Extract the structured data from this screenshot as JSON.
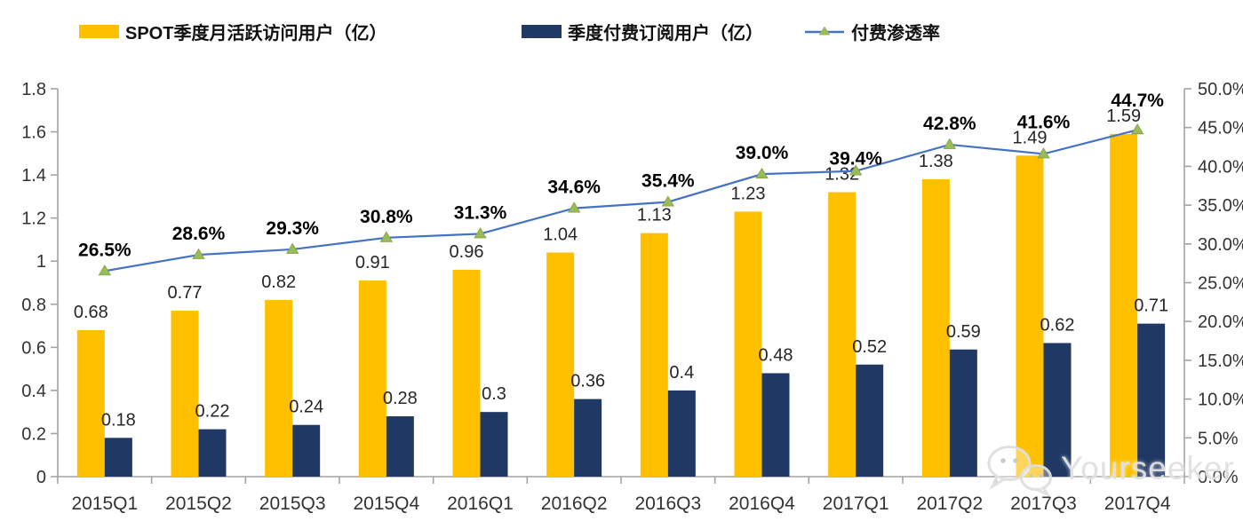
{
  "page": {
    "background": "#ffffff"
  },
  "legend": {
    "items": [
      {
        "label": "SPOT季度月活跃访问用户（亿）",
        "swatch": "bar",
        "color": "#FFC000"
      },
      {
        "label": "季度付费订阅用户（亿）",
        "swatch": "bar",
        "color": "#1F3864"
      },
      {
        "label": "付费渗透率",
        "swatch": "line-marker",
        "color": "#4472C4",
        "marker_color": "#9BBB59"
      }
    ]
  },
  "watermark": {
    "text": "Yourseeker",
    "icon": "wechat-icon",
    "color": "#DCDCDC"
  },
  "chart_data": {
    "type": "combo",
    "title": "",
    "categories": [
      "2015Q1",
      "2015Q2",
      "2015Q3",
      "2015Q4",
      "2016Q1",
      "2016Q2",
      "2016Q3",
      "2016Q4",
      "2017Q1",
      "2017Q2",
      "2017Q3",
      "2017Q4"
    ],
    "series": [
      {
        "name": "SPOT季度月活跃访问用户（亿）",
        "type": "bar",
        "axis": "left",
        "color": "#FFC000",
        "values": [
          0.68,
          0.77,
          0.82,
          0.91,
          0.96,
          1.04,
          1.13,
          1.23,
          1.32,
          1.38,
          1.49,
          1.59
        ],
        "labels": [
          "0.68",
          "0.77",
          "0.82",
          "0.91",
          "0.96",
          "1.04",
          "1.13",
          "1.23",
          "1.32",
          "1.38",
          "1.49",
          "1.59"
        ]
      },
      {
        "name": "季度付费订阅用户（亿）",
        "type": "bar",
        "axis": "left",
        "color": "#1F3864",
        "values": [
          0.18,
          0.22,
          0.24,
          0.28,
          0.3,
          0.36,
          0.4,
          0.48,
          0.52,
          0.59,
          0.62,
          0.71
        ],
        "labels": [
          "0.18",
          "0.22",
          "0.24",
          "0.28",
          "0.3",
          "0.36",
          "0.4",
          "0.48",
          "0.52",
          "0.59",
          "0.62",
          "0.71"
        ]
      },
      {
        "name": "付费渗透率",
        "type": "line",
        "axis": "right",
        "color": "#4472C4",
        "marker": "triangle",
        "marker_color": "#9BBB59",
        "values": [
          26.5,
          28.6,
          29.3,
          30.8,
          31.3,
          34.6,
          35.4,
          39.0,
          39.4,
          42.8,
          41.6,
          44.7
        ],
        "labels": [
          "26.5%",
          "28.6%",
          "29.3%",
          "30.8%",
          "31.3%",
          "34.6%",
          "35.4%",
          "39.0%",
          "39.4%",
          "42.8%",
          "41.6%",
          "44.7%"
        ]
      }
    ],
    "left_axis": {
      "min": 0,
      "max": 1.8,
      "ticks": [
        "0",
        "0.2",
        "0.4",
        "0.6",
        "0.8",
        "1",
        "1.2",
        "1.4",
        "1.6",
        "1.8"
      ]
    },
    "right_axis": {
      "min": 0,
      "max": 50,
      "ticks": [
        "0.0%",
        "5.0%",
        "10.0%",
        "15.0%",
        "20.0%",
        "25.0%",
        "30.0%",
        "35.0%",
        "40.0%",
        "45.0%",
        "50.0%"
      ]
    },
    "grid": false,
    "legend_position": "top",
    "style_colors": {
      "axis_line": "#A3A3A3",
      "tick_label": "#333333",
      "bar_label": "#262626",
      "pct_label": "#000000"
    }
  }
}
